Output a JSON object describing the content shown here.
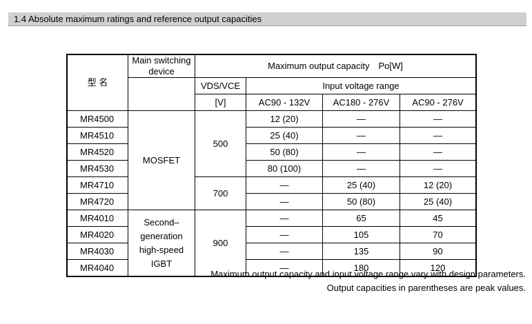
{
  "section": {
    "title": "1.4 Absolute maximum ratings and reference output capacities"
  },
  "table": {
    "header": {
      "model": "型 名",
      "device": "Main switching device",
      "vds_top": "VDS/VCE",
      "vds_unit": "[V]",
      "capacity": "Maximum output capacity　Po[W]",
      "input_range": "Input voltage range",
      "ranges": [
        "AC90 - 132V",
        "AC180 - 276V",
        "AC90 - 276V"
      ]
    },
    "groups": {
      "mosfet": "MOSFET",
      "igbt": [
        "Second–",
        "generation",
        "high-speed",
        "IGBT"
      ]
    },
    "voltages": [
      "500",
      "700",
      "900"
    ],
    "rows": [
      {
        "model": "MR4500",
        "v1": "12 (20)",
        "v2": "—",
        "v3": "—"
      },
      {
        "model": "MR4510",
        "v1": "25 (40)",
        "v2": "—",
        "v3": "—"
      },
      {
        "model": "MR4520",
        "v1": "50 (80)",
        "v2": "—",
        "v3": "—"
      },
      {
        "model": "MR4530",
        "v1": "80 (100)",
        "v2": "—",
        "v3": "—"
      },
      {
        "model": "MR4710",
        "v1": "—",
        "v2": "25 (40)",
        "v3": "12 (20)"
      },
      {
        "model": "MR4720",
        "v1": "—",
        "v2": "50 (80)",
        "v3": "25 (40)"
      },
      {
        "model": "MR4010",
        "v1": "—",
        "v2": "65",
        "v3": "45"
      },
      {
        "model": "MR4020",
        "v1": "—",
        "v2": "105",
        "v3": "70"
      },
      {
        "model": "MR4030",
        "v1": "—",
        "v2": "135",
        "v3": "90"
      },
      {
        "model": "MR4040",
        "v1": "—",
        "v2": "180",
        "v3": "120"
      }
    ]
  },
  "notes": [
    "Maximum output capacity and input voltage range vary with design parameters.",
    "Output capacities in parentheses are peak values."
  ]
}
